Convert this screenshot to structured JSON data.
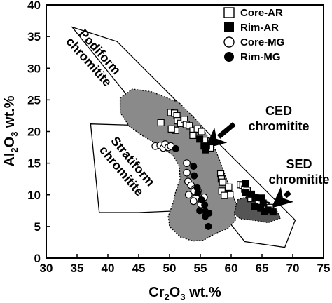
{
  "chart_data": {
    "type": "scatter",
    "xlabel": "Cr2O3 wt.%",
    "ylabel": "Al2O3 wt.%",
    "xlim": [
      30,
      75
    ],
    "ylim": [
      0,
      40
    ],
    "x_ticks": [
      30,
      35,
      40,
      45,
      50,
      55,
      60,
      65,
      70,
      75
    ],
    "y_ticks": [
      0,
      5,
      10,
      15,
      20,
      25,
      30,
      35,
      40
    ],
    "grid": false,
    "legend_position": "top-right",
    "fields": [
      {
        "name": "podiform",
        "label": [
          "Podiform",
          "chromitite"
        ],
        "polygon": [
          [
            34.2,
            36.5
          ],
          [
            41.5,
            34.2
          ],
          [
            70.4,
            6.0
          ],
          [
            68.7,
            1.7
          ],
          [
            62.2,
            2.6
          ]
        ]
      },
      {
        "name": "stratiform",
        "label": [
          "Stratiform",
          "chromitite"
        ],
        "polygon": [
          [
            37.2,
            21.2
          ],
          [
            44.2,
            21.0
          ],
          [
            56.5,
            12.6
          ],
          [
            54.9,
            7.6
          ],
          [
            45.0,
            7.2
          ],
          [
            38.6,
            7.2
          ]
        ]
      },
      {
        "name": "ced",
        "label": [
          "CED",
          "chromitite"
        ],
        "polygon": [
          [
            42.0,
            25.3
          ],
          [
            44.0,
            26.7
          ],
          [
            47.0,
            26.3
          ],
          [
            51.5,
            24.6
          ],
          [
            55.0,
            21.2
          ],
          [
            57.5,
            17.0
          ],
          [
            58.5,
            14.5
          ],
          [
            59.5,
            11.8
          ],
          [
            60.4,
            9.6
          ],
          [
            61.0,
            8.0
          ],
          [
            60.5,
            7.0
          ],
          [
            60.8,
            6.1
          ],
          [
            59.5,
            4.7
          ],
          [
            57.5,
            3.9
          ],
          [
            55.5,
            2.8
          ],
          [
            53.8,
            2.7
          ],
          [
            51.8,
            3.3
          ],
          [
            50.0,
            5.0
          ],
          [
            49.8,
            6.6
          ],
          [
            50.5,
            8.5
          ],
          [
            51.0,
            10.5
          ],
          [
            51.7,
            12.5
          ],
          [
            51.6,
            14.5
          ],
          [
            50.5,
            16.3
          ],
          [
            48.0,
            18.0
          ],
          [
            45.5,
            19.4
          ],
          [
            43.5,
            20.8
          ],
          [
            42.0,
            23.0
          ]
        ]
      },
      {
        "name": "sed",
        "label": [
          "SED",
          "chromitite"
        ],
        "polygon": [
          [
            61.0,
            9.2
          ],
          [
            63.0,
            9.8
          ],
          [
            66.0,
            9.0
          ],
          [
            67.5,
            7.3
          ],
          [
            68.0,
            6.3
          ],
          [
            66.0,
            5.6
          ],
          [
            63.5,
            6.0
          ],
          [
            61.5,
            6.2
          ],
          [
            60.5,
            7.0
          ]
        ]
      }
    ],
    "arrows": [
      {
        "from": [
          60.5,
          21.2
        ],
        "to": [
          55.7,
          17.3
        ]
      },
      {
        "from": [
          69.5,
          10.4
        ],
        "to": [
          66.5,
          7.9
        ]
      }
    ],
    "series": [
      {
        "name": "Core-AR",
        "marker": "open-square",
        "points": [
          [
            50.2,
            23.0
          ],
          [
            50.8,
            22.9
          ],
          [
            51.2,
            22.5
          ],
          [
            51.3,
            21.7
          ],
          [
            51.8,
            21.3
          ],
          [
            52.4,
            21.9
          ],
          [
            52.7,
            21.1
          ],
          [
            53.2,
            20.9
          ],
          [
            53.8,
            20.1
          ],
          [
            54.5,
            20.4
          ],
          [
            55.2,
            20.0
          ],
          [
            55.7,
            18.6
          ],
          [
            51.0,
            20.2
          ],
          [
            48.6,
            21.4
          ],
          [
            50.3,
            20.4
          ],
          [
            53.8,
            19.4
          ],
          [
            56.6,
            17.4
          ],
          [
            58.3,
            13.3
          ],
          [
            58.4,
            12.5
          ],
          [
            58.6,
            12.0
          ],
          [
            58.5,
            10.6
          ],
          [
            59.6,
            11.2
          ],
          [
            59.8,
            10.0
          ],
          [
            61.5,
            11.6
          ],
          [
            61.9,
            11.5
          ],
          [
            62.2,
            10.9
          ],
          [
            62.6,
            10.7
          ],
          [
            58.9,
            9.9
          ],
          [
            63.0,
            9.9
          ],
          [
            63.2,
            9.4
          ],
          [
            64.4,
            9.0
          ],
          [
            65.6,
            8.3
          ],
          [
            66.3,
            8.0
          ]
        ]
      },
      {
        "name": "Rim-AR",
        "marker": "filled-square",
        "points": [
          [
            54.9,
            18.8
          ],
          [
            55.6,
            17.7
          ],
          [
            55.8,
            17.1
          ],
          [
            56.0,
            17.7
          ],
          [
            62.3,
            11.8
          ],
          [
            62.3,
            10.3
          ],
          [
            63.3,
            10.1
          ],
          [
            63.9,
            9.6
          ],
          [
            64.9,
            9.5
          ],
          [
            65.2,
            8.7
          ],
          [
            63.8,
            8.2
          ],
          [
            65.4,
            7.4
          ],
          [
            66.0,
            7.6
          ],
          [
            66.8,
            7.3
          ],
          [
            64.8,
            7.9
          ]
        ]
      },
      {
        "name": "Core-MG",
        "marker": "open-circle",
        "points": [
          [
            47.7,
            17.7
          ],
          [
            48.5,
            17.8
          ],
          [
            49.0,
            17.4
          ],
          [
            49.3,
            18.0
          ],
          [
            49.8,
            17.5
          ],
          [
            50.2,
            17.7
          ],
          [
            52.8,
            15.0
          ],
          [
            52.8,
            13.5
          ],
          [
            53.0,
            12.1
          ],
          [
            53.5,
            11.5
          ],
          [
            54.0,
            10.9
          ],
          [
            54.6,
            10.6
          ],
          [
            54.0,
            10.6
          ],
          [
            53.1,
            10.0
          ],
          [
            54.3,
            9.5
          ],
          [
            55.6,
            9.6
          ],
          [
            53.9,
            9.0
          ],
          [
            55.1,
            8.5
          ]
        ]
      },
      {
        "name": "Rim-MG",
        "marker": "filled-circle",
        "points": [
          [
            51.0,
            17.3
          ],
          [
            53.9,
            14.5
          ],
          [
            54.0,
            13.0
          ],
          [
            54.5,
            11.1
          ],
          [
            54.6,
            10.3
          ],
          [
            55.2,
            9.2
          ],
          [
            55.7,
            8.4
          ],
          [
            54.9,
            7.5
          ],
          [
            55.8,
            7.4
          ],
          [
            56.4,
            7.1
          ],
          [
            55.8,
            6.6
          ],
          [
            56.3,
            5.0
          ]
        ]
      }
    ]
  }
}
